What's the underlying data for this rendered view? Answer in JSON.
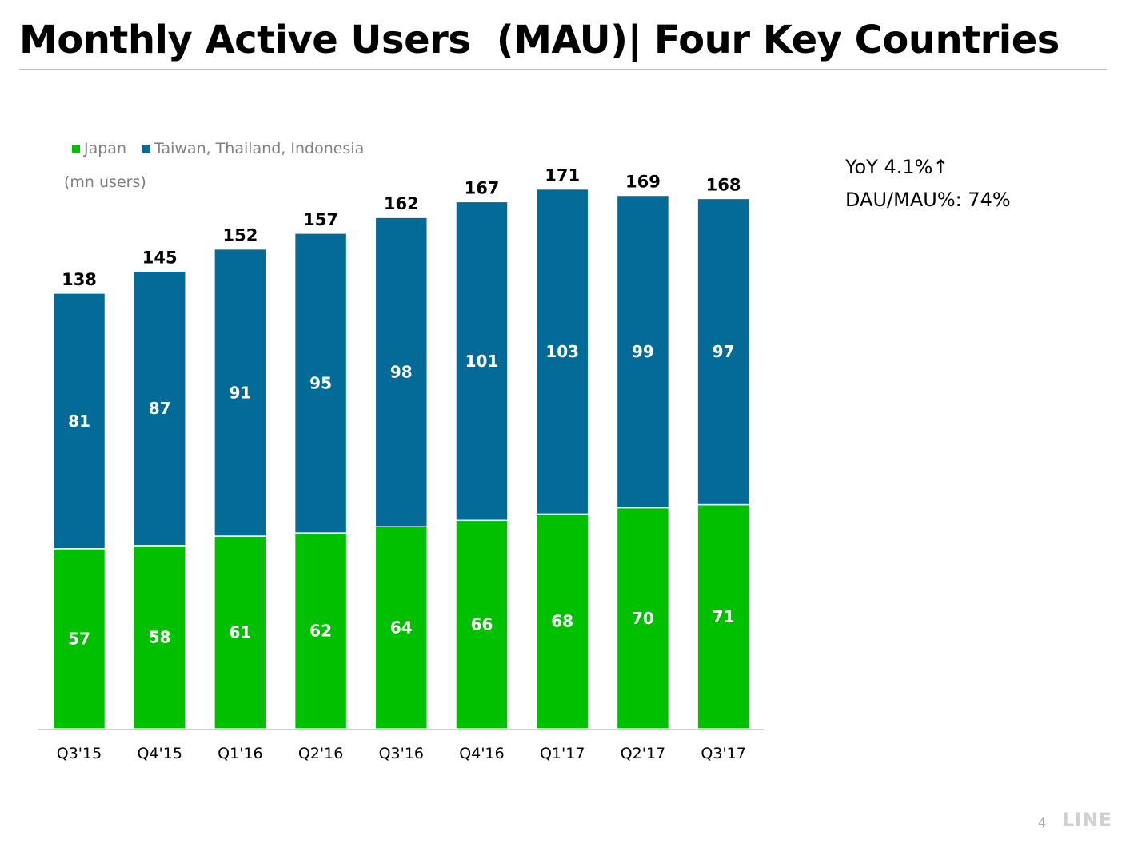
{
  "slide": {
    "title": "Monthly Active Users  (MAU)| Four Key Countries",
    "page_number": "4",
    "logo_text": "LINE"
  },
  "notes": {
    "yoy": "YoY 4.1%↑",
    "dau_mau": "DAU/MAU%: 74%"
  },
  "colors": {
    "japan": "#00c000",
    "taiwan_thailand_indonesia": "#046b99"
  },
  "chart_data": {
    "type": "bar",
    "stacked": true,
    "unit": "(mn users)",
    "categories": [
      "Q3'15",
      "Q4'15",
      "Q1'16",
      "Q2'16",
      "Q3'16",
      "Q4'16",
      "Q1'17",
      "Q2'17",
      "Q3'17"
    ],
    "series": [
      {
        "name": "Japan",
        "values": [
          57,
          58,
          61,
          62,
          64,
          66,
          68,
          70,
          71
        ]
      },
      {
        "name": "Taiwan, Thailand, Indonesia",
        "values": [
          81,
          87,
          91,
          95,
          98,
          101,
          103,
          99,
          97
        ]
      }
    ],
    "totals": [
      138,
      145,
      152,
      157,
      162,
      167,
      171,
      169,
      168
    ],
    "ylim": [
      0,
      180
    ],
    "legend_position": "top-left",
    "grid": false
  }
}
